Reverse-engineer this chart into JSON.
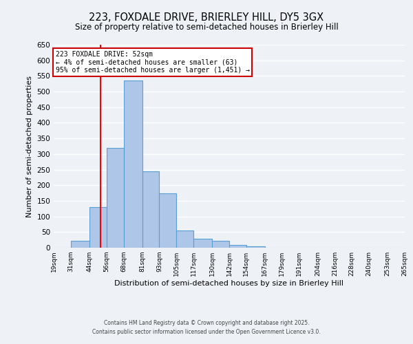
{
  "title": "223, FOXDALE DRIVE, BRIERLEY HILL, DY5 3GX",
  "subtitle": "Size of property relative to semi-detached houses in Brierley Hill",
  "xlabel": "Distribution of semi-detached houses by size in Brierley Hill",
  "ylabel": "Number of semi-detached properties",
  "bin_edges": [
    19,
    31,
    44,
    56,
    68,
    81,
    93,
    105,
    117,
    130,
    142,
    154,
    167,
    179,
    191,
    204,
    216,
    228,
    240,
    253,
    265
  ],
  "bar_heights": [
    0,
    22,
    130,
    320,
    535,
    245,
    175,
    55,
    28,
    22,
    8,
    5,
    0,
    0,
    0,
    0,
    0,
    0,
    0,
    0
  ],
  "bar_color": "#aec6e8",
  "bar_edge_color": "#5a9fd4",
  "background_color": "#eef2f7",
  "grid_color": "#ffffff",
  "red_line_x": 52,
  "ylim": [
    0,
    650
  ],
  "yticks": [
    0,
    50,
    100,
    150,
    200,
    250,
    300,
    350,
    400,
    450,
    500,
    550,
    600,
    650
  ],
  "annotation_title": "223 FOXDALE DRIVE: 52sqm",
  "annotation_line1": "← 4% of semi-detached houses are smaller (63)",
  "annotation_line2": "95% of semi-detached houses are larger (1,451) →",
  "annotation_box_color": "#ffffff",
  "annotation_border_color": "#cc0000",
  "footnote1": "Contains HM Land Registry data © Crown copyright and database right 2025.",
  "footnote2": "Contains public sector information licensed under the Open Government Licence v3.0.",
  "tick_labels": [
    "19sqm",
    "31sqm",
    "44sqm",
    "56sqm",
    "68sqm",
    "81sqm",
    "93sqm",
    "105sqm",
    "117sqm",
    "130sqm",
    "142sqm",
    "154sqm",
    "167sqm",
    "179sqm",
    "191sqm",
    "204sqm",
    "216sqm",
    "228sqm",
    "240sqm",
    "253sqm",
    "265sqm"
  ]
}
